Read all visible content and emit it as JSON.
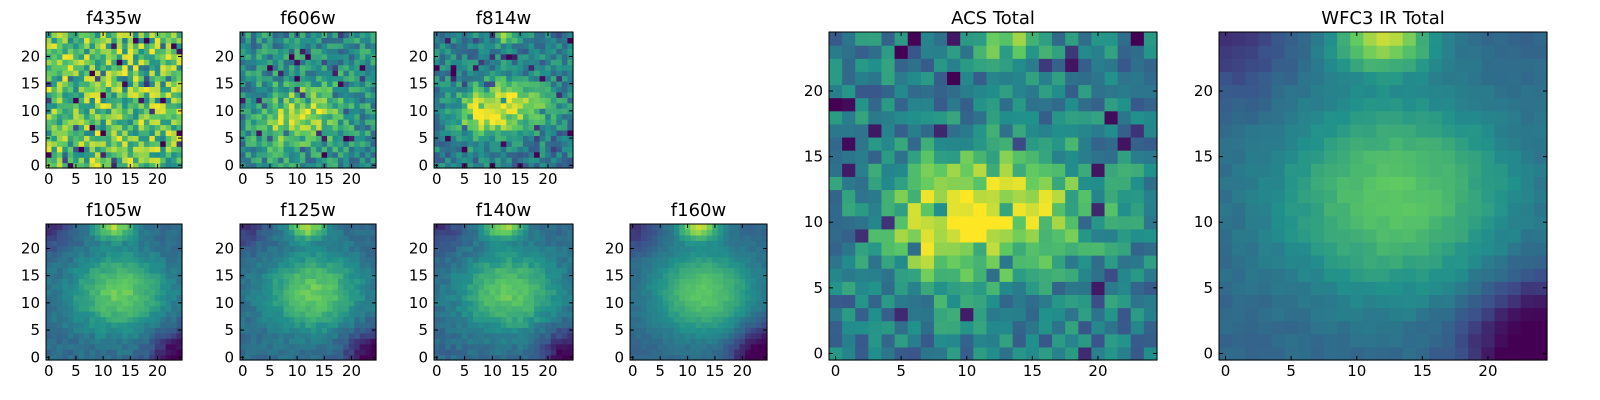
{
  "colormap": [
    "#440154",
    "#3b528b",
    "#21918c",
    "#5ec962",
    "#fde725"
  ],
  "chart_data": [
    {
      "type": "heatmap",
      "title": "f435w",
      "grid_size": 25,
      "pattern": "noise",
      "x_ticks": [
        "0",
        "5",
        "10",
        "15",
        "20"
      ],
      "y_ticks": [
        "0",
        "5",
        "10",
        "15",
        "20"
      ],
      "grid": false,
      "colorbar": false
    },
    {
      "type": "heatmap",
      "title": "f606w",
      "grid_size": 25,
      "pattern": "acs-faint",
      "x_ticks": [
        "0",
        "5",
        "10",
        "15",
        "20"
      ],
      "y_ticks": [
        "0",
        "5",
        "10",
        "15",
        "20"
      ],
      "grid": false,
      "colorbar": false
    },
    {
      "type": "heatmap",
      "title": "f814w",
      "grid_size": 25,
      "pattern": "acs",
      "x_ticks": [
        "0",
        "5",
        "10",
        "15",
        "20"
      ],
      "y_ticks": [
        "0",
        "5",
        "10",
        "15",
        "20"
      ],
      "grid": false,
      "colorbar": false
    },
    {
      "type": "heatmap",
      "title": "f105w",
      "grid_size": 25,
      "pattern": "ir",
      "x_ticks": [
        "0",
        "5",
        "10",
        "15",
        "20"
      ],
      "y_ticks": [
        "0",
        "5",
        "10",
        "15",
        "20"
      ],
      "grid": false,
      "colorbar": false
    },
    {
      "type": "heatmap",
      "title": "f125w",
      "grid_size": 25,
      "pattern": "ir",
      "x_ticks": [
        "0",
        "5",
        "10",
        "15",
        "20"
      ],
      "y_ticks": [
        "0",
        "5",
        "10",
        "15",
        "20"
      ],
      "grid": false,
      "colorbar": false
    },
    {
      "type": "heatmap",
      "title": "f140w",
      "grid_size": 25,
      "pattern": "ir",
      "x_ticks": [
        "0",
        "5",
        "10",
        "15",
        "20"
      ],
      "y_ticks": [
        "0",
        "5",
        "10",
        "15",
        "20"
      ],
      "grid": false,
      "colorbar": false
    },
    {
      "type": "heatmap",
      "title": "f160w",
      "grid_size": 25,
      "pattern": "ir-smooth",
      "x_ticks": [
        "0",
        "5",
        "10",
        "15",
        "20"
      ],
      "y_ticks": [
        "0",
        "5",
        "10",
        "15",
        "20"
      ],
      "grid": false,
      "colorbar": false
    },
    {
      "type": "heatmap",
      "title": "ACS Total",
      "grid_size": 25,
      "pattern": "acs",
      "x_ticks": [
        "0",
        "5",
        "10",
        "15",
        "20"
      ],
      "y_ticks": [
        "0",
        "5",
        "10",
        "15",
        "20"
      ],
      "grid": false,
      "colorbar": false
    },
    {
      "type": "heatmap",
      "title": "WFC3 IR Total",
      "grid_size": 25,
      "pattern": "ir-smooth",
      "x_ticks": [
        "0",
        "5",
        "10",
        "15",
        "20"
      ],
      "y_ticks": [
        "0",
        "5",
        "10",
        "15",
        "20"
      ],
      "grid": false,
      "colorbar": false
    }
  ]
}
